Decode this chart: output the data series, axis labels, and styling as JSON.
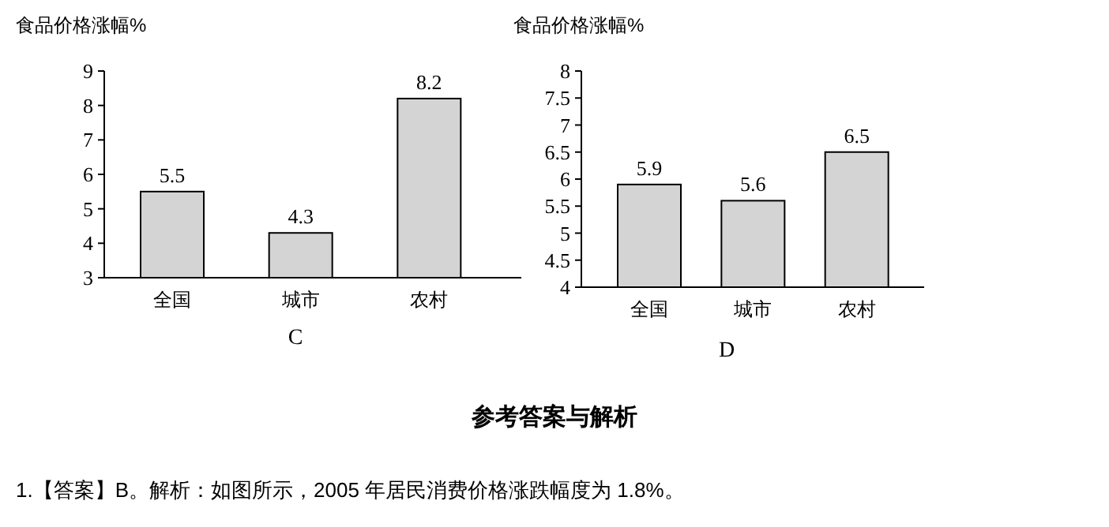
{
  "chart_data": [
    {
      "type": "bar",
      "ylabel": "食品价格涨幅%",
      "xlabel": "C",
      "categories": [
        "全国",
        "城市",
        "农村"
      ],
      "values": [
        5.5,
        4.3,
        8.2
      ],
      "color": "#d4d4d4",
      "ylim": [
        3,
        9
      ],
      "yticks": [
        3,
        4,
        5,
        6,
        7,
        8,
        9
      ],
      "data_labels": true
    },
    {
      "type": "bar",
      "ylabel": "食品价格涨幅%",
      "xlabel": "D",
      "categories": [
        "全国",
        "城市",
        "农村"
      ],
      "values": [
        5.9,
        5.6,
        6.5
      ],
      "color": "#d4d4d4",
      "ylim": [
        4,
        8
      ],
      "yticks": [
        4,
        4.5,
        5,
        5.5,
        6,
        6.5,
        7,
        7.5,
        8
      ],
      "data_labels": true
    },
    {
      "type": "other",
      "title": "参考答案与解析",
      "annotations": [
        "1.【答案】B。解析：如图所示，2005 年居民消费价格涨跌幅度为 1.8%。"
      ]
    }
  ]
}
